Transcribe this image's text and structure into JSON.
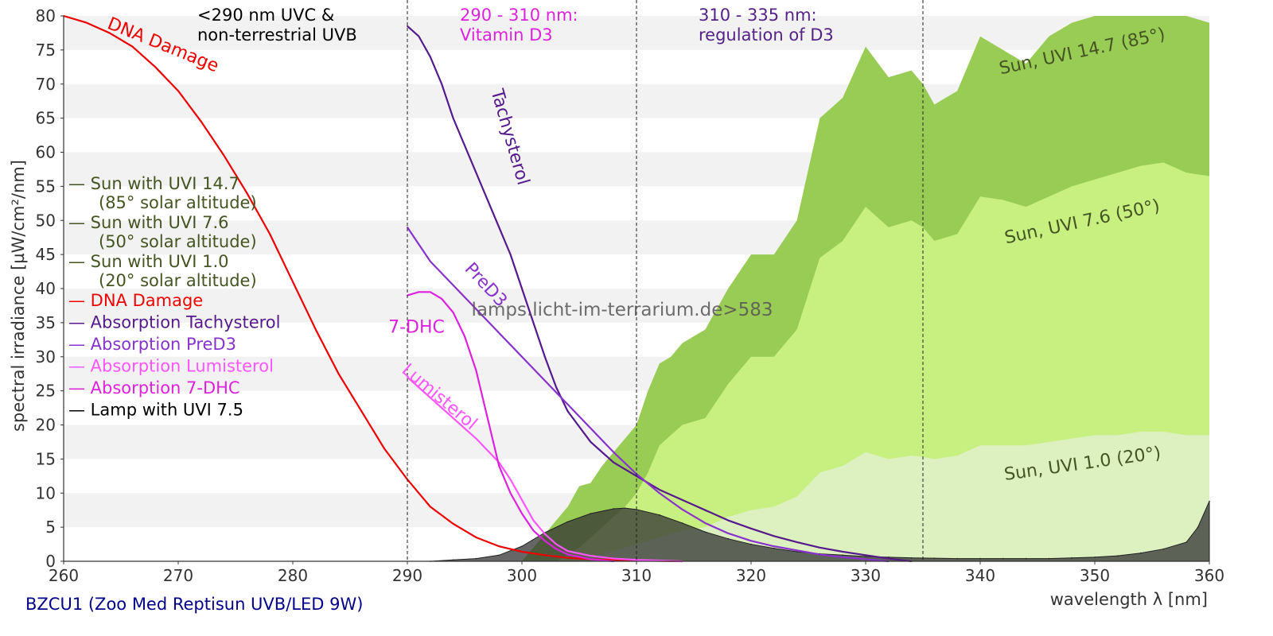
{
  "chart_data": {
    "type": "area",
    "ylabel": "spectral irradiance [µW/cm²/nm]",
    "xlabel": "wavelength λ [nm]",
    "xlim": [
      260,
      360
    ],
    "ylim": [
      0,
      80
    ],
    "xticks": [
      260,
      270,
      280,
      290,
      300,
      310,
      320,
      330,
      340,
      350,
      360
    ],
    "yticks": [
      0,
      5,
      10,
      15,
      20,
      25,
      30,
      35,
      40,
      45,
      50,
      55,
      60,
      65,
      70,
      75,
      80
    ],
    "grid": "horizontal bands",
    "legend_placement": "left",
    "watermark": "lamps.licht-im-terrarium.de>583",
    "footer": "BZCU1 (Zoo Med Reptisun UVB/LED 9W)",
    "regions": [
      {
        "x": 290,
        "label_lines": [
          "<290 nm UVC &",
          "non-terrestrial UVB"
        ],
        "color": "#000000"
      },
      {
        "x": 310,
        "label_lines": [
          "290 - 310 nm:",
          "Vitamin D3"
        ],
        "color": "#dd22dd"
      },
      {
        "x": 335,
        "label_lines": [
          "310 - 335 nm:",
          "regulation of D3"
        ],
        "color": "#552288"
      }
    ],
    "legend": [
      {
        "label": "— Sun with UVI 14.7",
        "sub": "(85° solar altitude)",
        "color": "#445522"
      },
      {
        "label": "— Sun with UVI 7.6",
        "sub": "(50° solar altitude)",
        "color": "#445522"
      },
      {
        "label": "— Sun with UVI 1.0",
        "sub": "(20° solar altitude)",
        "color": "#445522"
      },
      {
        "label": "— DNA Damage",
        "sub": "",
        "color": "#ee0000"
      },
      {
        "label": "— Absorption Tachysterol",
        "sub": "",
        "color": "#551a8b"
      },
      {
        "label": "— Absorption PreD3",
        "sub": "",
        "color": "#8833cc"
      },
      {
        "label": "— Absorption Lumisterol",
        "sub": "",
        "color": "#ff55ff"
      },
      {
        "label": "— Absorption 7-DHC",
        "sub": "",
        "color": "#dd22dd"
      },
      {
        "label": "— Lamp with UVI 7.5",
        "sub": "",
        "color": "#000000"
      }
    ],
    "series": [
      {
        "name": "Sun, UVI 14.7 (85°)",
        "color": "#99cc55",
        "x": [
          300,
          302,
          303,
          304,
          305,
          306,
          307,
          308,
          309,
          310,
          311,
          312,
          313,
          314,
          315,
          316,
          318,
          320,
          322,
          324,
          326,
          328,
          330,
          332,
          334,
          335,
          336,
          338,
          340,
          342,
          344,
          346,
          348,
          350,
          352,
          354,
          356,
          358,
          360
        ],
        "y": [
          0,
          4,
          6,
          8,
          11,
          11.5,
          14,
          16,
          18,
          20,
          25,
          29,
          30,
          32,
          33,
          34,
          40,
          45,
          45,
          50,
          65,
          68,
          75.5,
          71,
          72,
          70,
          67,
          69,
          77,
          75,
          73,
          77,
          79,
          80,
          82,
          83,
          83,
          81,
          79
        ]
      },
      {
        "name": "Sun, UVI 7.6 (50°)",
        "color": "#c8f080",
        "x": [
          303,
          305,
          307,
          309,
          310,
          311,
          312,
          313,
          314,
          316,
          318,
          320,
          322,
          324,
          326,
          328,
          330,
          332,
          334,
          335,
          336,
          338,
          340,
          342,
          344,
          346,
          348,
          350,
          352,
          354,
          356,
          358,
          360
        ],
        "y": [
          0,
          2,
          5,
          8,
          10,
          13,
          17,
          18.5,
          20,
          21,
          26,
          30,
          30,
          34,
          44.5,
          47,
          52,
          49,
          50,
          49,
          47,
          48,
          53.5,
          53,
          52,
          53.5,
          55,
          56,
          57,
          58,
          58.5,
          57,
          56.5
        ]
      },
      {
        "name": "Sun, UVI 1.0 (20°)",
        "color": "#dcf0c0",
        "x": [
          305,
          308,
          310,
          312,
          314,
          316,
          318,
          320,
          322,
          324,
          326,
          328,
          330,
          332,
          334,
          335,
          336,
          338,
          340,
          342,
          344,
          346,
          348,
          350,
          352,
          354,
          356,
          358,
          360
        ],
        "y": [
          0,
          1.5,
          2.5,
          3.5,
          4.5,
          5,
          6.5,
          7.5,
          8,
          9.5,
          13,
          14,
          16,
          15,
          15.5,
          15.3,
          15,
          15.5,
          17,
          17,
          17,
          17.5,
          18,
          18.5,
          18.5,
          19,
          19,
          18.5,
          18.5
        ]
      },
      {
        "name": "Lamp with UVI 7.5",
        "color": "#333333",
        "x": [
          292,
          294,
          296,
          298,
          300,
          302,
          304,
          306,
          308,
          309,
          310,
          312,
          314,
          316,
          318,
          320,
          322,
          324,
          326,
          328,
          330,
          332,
          334,
          336,
          338,
          340,
          342,
          344,
          346,
          348,
          350,
          352,
          354,
          356,
          358,
          359,
          360
        ],
        "y": [
          0,
          0.2,
          0.4,
          0.9,
          2.2,
          4.2,
          5.8,
          7,
          7.7,
          7.8,
          7.6,
          6.8,
          5.6,
          4.3,
          3.3,
          2.5,
          1.9,
          1.4,
          1.1,
          0.9,
          0.7,
          0.6,
          0.5,
          0.45,
          0.4,
          0.4,
          0.4,
          0.4,
          0.4,
          0.5,
          0.6,
          0.8,
          1.2,
          1.8,
          2.8,
          5,
          8.8
        ]
      },
      {
        "name": "DNA Damage",
        "color": "#ee0000",
        "x": [
          260,
          262,
          264,
          266,
          268,
          270,
          272,
          274,
          276,
          278,
          280,
          282,
          284,
          286,
          288,
          290,
          292,
          294,
          296,
          298,
          300,
          302,
          304,
          306,
          308,
          310,
          312,
          314
        ],
        "y": [
          80,
          79,
          77.5,
          75.5,
          72.5,
          69,
          64.5,
          59.5,
          54,
          48,
          41,
          34,
          27.5,
          22,
          16.5,
          12,
          8,
          5.5,
          3.5,
          2.2,
          1.4,
          0.9,
          0.5,
          0.3,
          0.2,
          0.1,
          0.05,
          0
        ]
      },
      {
        "name": "Absorption Tachysterol",
        "color": "#551a8b",
        "x": [
          290,
          291,
          292,
          293,
          294,
          295,
          296,
          297,
          298,
          299,
          300,
          301,
          302,
          303,
          304,
          306,
          308,
          310,
          312,
          314,
          316,
          318,
          320,
          322,
          324,
          326,
          328,
          330,
          332,
          334
        ],
        "y": [
          78.5,
          77,
          74,
          70,
          65,
          61,
          57,
          53,
          49,
          45,
          40,
          35,
          30,
          25.5,
          22,
          17.5,
          14.5,
          12.5,
          10.5,
          9,
          7.5,
          6,
          4.8,
          3.7,
          2.8,
          2,
          1.4,
          0.9,
          0.4,
          0
        ]
      },
      {
        "name": "Absorption PreD3",
        "color": "#8833cc",
        "x": [
          290,
          292,
          294,
          296,
          298,
          300,
          302,
          304,
          306,
          308,
          310,
          312,
          314,
          316,
          318,
          320,
          322,
          324,
          326,
          328,
          330,
          332
        ],
        "y": [
          49,
          44,
          40.5,
          37,
          33.5,
          30,
          26.5,
          23,
          19.5,
          16,
          12.8,
          10,
          7.6,
          5.6,
          4.1,
          3,
          2.2,
          1.6,
          1,
          0.6,
          0.3,
          0
        ]
      },
      {
        "name": "Absorption Lumisterol",
        "color": "#ff55ff",
        "x": [
          290,
          292,
          294,
          296,
          298,
          299,
          300,
          301,
          302,
          303,
          304,
          306,
          308,
          310,
          312,
          314
        ],
        "y": [
          27,
          24,
          21,
          18,
          14.5,
          12,
          9,
          6,
          4,
          2.5,
          1.5,
          0.8,
          0.4,
          0.2,
          0.1,
          0
        ]
      },
      {
        "name": "Absorption 7-DHC",
        "color": "#dd22dd",
        "x": [
          290,
          291,
          292,
          293,
          294,
          295,
          296,
          297,
          298,
          299,
          300,
          301,
          302,
          303,
          304,
          306,
          308
        ],
        "y": [
          39,
          39.5,
          39.5,
          38.5,
          36.5,
          33,
          28,
          21,
          14,
          10,
          7,
          4.5,
          3,
          1.8,
          1,
          0.3,
          0
        ]
      }
    ],
    "curve_labels": [
      {
        "text": "DNA Damage",
        "x": 268.5,
        "y": 75,
        "angle": 22,
        "color": "#ee0000"
      },
      {
        "text": "Tachysterol",
        "x": 298.5,
        "y": 62,
        "angle": 74,
        "color": "#551a8b"
      },
      {
        "text": "PreD3",
        "x": 296.5,
        "y": 40,
        "angle": 47,
        "color": "#8833cc"
      },
      {
        "text": "7-DHC",
        "x": 290.8,
        "y": 33.5,
        "angle": 0,
        "color": "#dd22dd"
      },
      {
        "text": "Lumisterol",
        "x": 292.5,
        "y": 23.5,
        "angle": 40,
        "color": "#ff55ff"
      },
      {
        "text": "Sun, UVI 14.7 (85°)",
        "x": 349,
        "y": 74,
        "angle": -12,
        "color": "#445522"
      },
      {
        "text": "Sun, UVI 7.6 (50°)",
        "x": 349,
        "y": 49,
        "angle": -12,
        "color": "#445522"
      },
      {
        "text": "Sun, UVI 1.0 (20°)",
        "x": 349,
        "y": 13.5,
        "angle": -8,
        "color": "#445522"
      }
    ]
  }
}
